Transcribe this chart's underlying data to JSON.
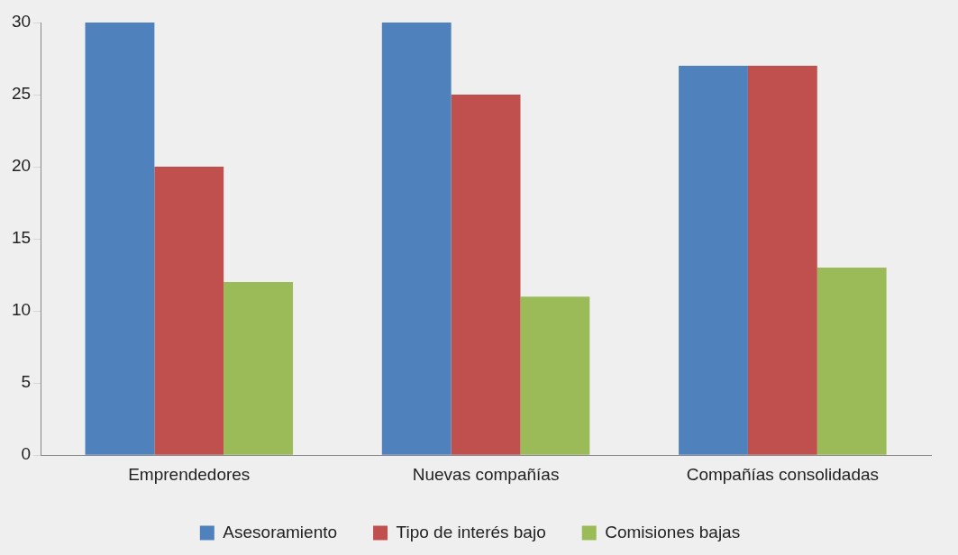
{
  "chart_data": {
    "type": "bar",
    "categories": [
      "Emprendedores",
      "Nuevas compañías",
      "Compañías consolidadas"
    ],
    "series": [
      {
        "name": "Asesoramiento",
        "color": "#4f81bd",
        "values": [
          30,
          30,
          27
        ]
      },
      {
        "name": "Tipo de interés bajo",
        "color": "#c0504d",
        "values": [
          20,
          25,
          27
        ]
      },
      {
        "name": "Comisiones bajas",
        "color": "#9bbb59",
        "values": [
          12,
          11,
          13
        ]
      }
    ],
    "ylim": [
      0,
      30
    ],
    "yticks": [
      0,
      5,
      10,
      15,
      20,
      25,
      30
    ],
    "grid": false,
    "legend": "bottom"
  }
}
